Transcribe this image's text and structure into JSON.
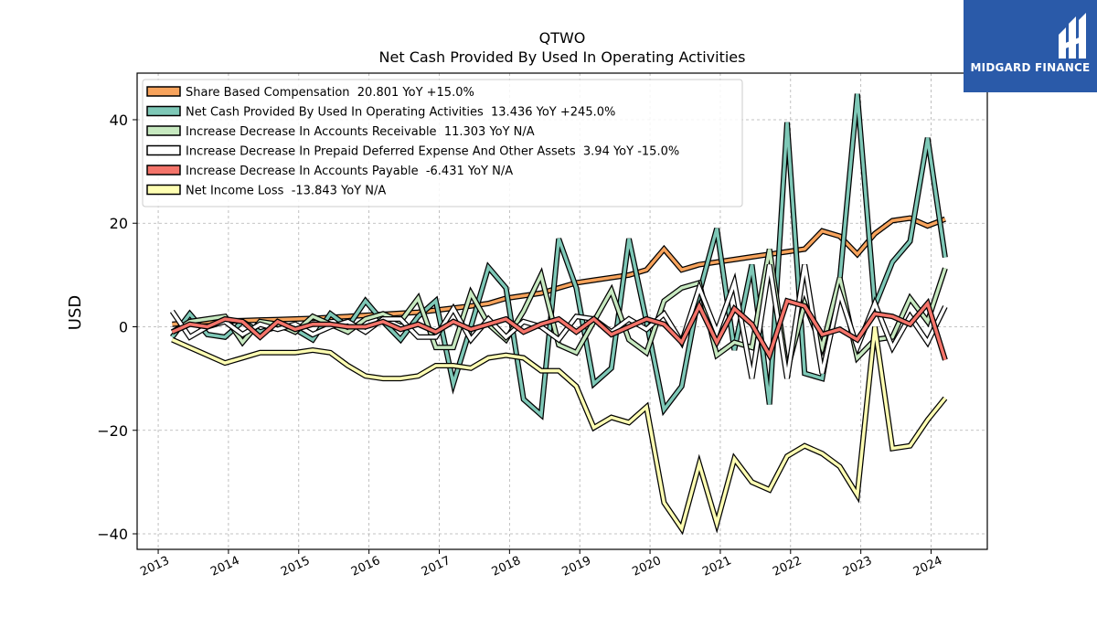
{
  "brand": {
    "name": "MIDGARD FINANCE",
    "background": "#2a5aa9"
  },
  "chart_data": {
    "type": "line",
    "title": "QTWO",
    "subtitle": "Net Cash Provided By Used In Operating Activities",
    "xlabel": "",
    "ylabel": "USD",
    "xlim": [
      2012.7,
      2024.8
    ],
    "ylim": [
      -43,
      49
    ],
    "x_ticks": [
      2013,
      2014,
      2015,
      2016,
      2017,
      2018,
      2019,
      2020,
      2021,
      2022,
      2023,
      2024
    ],
    "y_ticks": [
      -40,
      -20,
      0,
      20,
      40
    ],
    "y_tick_labels": [
      "−40",
      "−20",
      "0",
      "20",
      "40"
    ],
    "grid": true,
    "legend_position": "top-left",
    "x": [
      2013.2,
      2013.45,
      2013.7,
      2013.95,
      2014.2,
      2014.45,
      2014.7,
      2014.95,
      2015.2,
      2015.45,
      2015.7,
      2015.95,
      2016.2,
      2016.45,
      2016.7,
      2016.95,
      2017.2,
      2017.45,
      2017.7,
      2017.95,
      2018.2,
      2018.45,
      2018.7,
      2018.95,
      2019.2,
      2019.45,
      2019.7,
      2019.95,
      2020.2,
      2020.45,
      2020.7,
      2020.95,
      2021.2,
      2021.45,
      2021.7,
      2021.95,
      2022.2,
      2022.45,
      2022.7,
      2022.95,
      2023.2,
      2023.45,
      2023.7,
      2023.95,
      2024.2
    ],
    "series": [
      {
        "name": "Share Based Compensation  20.801 YoY +15.0%",
        "color": "#f7a35c",
        "values": [
          0.5,
          0.8,
          1.0,
          1.1,
          1.2,
          1.3,
          1.4,
          1.5,
          1.6,
          1.8,
          2.0,
          2.2,
          2.4,
          2.6,
          2.8,
          3.2,
          3.6,
          4.0,
          4.5,
          5.5,
          6.0,
          6.5,
          7.5,
          8.5,
          9.0,
          9.5,
          10.0,
          11.0,
          15.0,
          11.0,
          12.0,
          12.5,
          13.0,
          13.5,
          14.0,
          14.5,
          15.0,
          18.5,
          17.5,
          14.0,
          18.0,
          20.5,
          21.0,
          19.5,
          20.8
        ]
      },
      {
        "name": "Net Cash Provided By Used In Operating Activities  13.436 YoY +245.0%",
        "color": "#7ec8b7",
        "values": [
          -2.0,
          2.5,
          -1.5,
          -2.0,
          1.0,
          -1.0,
          0.0,
          -0.5,
          -2.5,
          2.5,
          0.0,
          5.0,
          1.0,
          -2.5,
          2.0,
          5.0,
          -11.0,
          0.0,
          11.5,
          7.5,
          -14.0,
          -17.0,
          17.0,
          7.5,
          -11.0,
          -8.0,
          17.0,
          1.0,
          -16.0,
          -11.5,
          6.5,
          19.0,
          -4.5,
          12.0,
          -15.0,
          39.5,
          -9.0,
          -10.0,
          9.0,
          45.0,
          4.0,
          12.5,
          16.5,
          36.5,
          13.4
        ]
      },
      {
        "name": "Increase Decrease In Accounts Receivable  11.303 YoY N/A",
        "color": "#c7e9c0",
        "values": [
          -1.0,
          1.0,
          1.5,
          2.0,
          -3.0,
          1.0,
          0.5,
          -1.0,
          2.0,
          0.5,
          -1.0,
          1.5,
          2.5,
          1.0,
          5.5,
          -4.0,
          -4.0,
          6.5,
          0.5,
          -2.5,
          3.0,
          10.0,
          -3.5,
          -5.0,
          1.0,
          7.0,
          -2.5,
          -5.0,
          5.0,
          7.5,
          8.5,
          -5.5,
          -3.0,
          -4.0,
          15.0,
          -8.5,
          4.5,
          -4.0,
          9.5,
          -6.0,
          -2.5,
          -2.0,
          5.5,
          1.0,
          11.3
        ]
      },
      {
        "name": "Increase Decrease In Prepaid Deferred Expense And Other Assets  3.94 YoY -15.0%",
        "color": "#ffffff",
        "values": [
          3.0,
          -2.0,
          0.0,
          1.0,
          -1.5,
          0.5,
          -0.5,
          0.5,
          -1.5,
          0.0,
          1.0,
          -1.0,
          1.5,
          1.5,
          -2.0,
          -2.0,
          3.5,
          -2.5,
          1.5,
          -2.0,
          1.0,
          0.0,
          -2.5,
          2.0,
          1.5,
          -1.0,
          1.5,
          -0.5,
          2.5,
          -3.0,
          7.5,
          -1.0,
          8.5,
          -10.0,
          12.0,
          -10.0,
          12.0,
          -9.0,
          6.5,
          -4.0,
          4.5,
          -4.0,
          2.0,
          -3.0,
          3.9
        ]
      },
      {
        "name": "Increase Decrease In Accounts Payable  -6.431 YoY N/A",
        "color": "#f4746a",
        "values": [
          -1.0,
          0.5,
          0.0,
          1.5,
          1.0,
          -2.0,
          1.0,
          -0.5,
          0.5,
          0.5,
          0.0,
          0.0,
          1.0,
          -0.5,
          0.5,
          -1.0,
          1.0,
          -0.5,
          0.5,
          1.5,
          -1.0,
          0.5,
          1.5,
          -1.0,
          1.5,
          -1.5,
          0.0,
          1.5,
          0.5,
          -3.0,
          4.0,
          -3.0,
          3.5,
          0.5,
          -5.5,
          5.0,
          4.0,
          -1.5,
          -0.5,
          -2.5,
          2.5,
          2.0,
          0.5,
          4.5,
          -6.4
        ]
      },
      {
        "name": "Net Income Loss  -13.843 YoY N/A",
        "color": "#ffffb3",
        "values": [
          -2.5,
          -4.0,
          -5.5,
          -7.0,
          -6.0,
          -5.0,
          -5.0,
          -5.0,
          -4.5,
          -5.0,
          -7.5,
          -9.5,
          -10.0,
          -10.0,
          -9.5,
          -7.5,
          -7.5,
          -8.0,
          -6.0,
          -5.5,
          -6.0,
          -8.5,
          -8.5,
          -11.5,
          -19.5,
          -17.5,
          -18.5,
          -15.5,
          -34.0,
          -39.0,
          -26.5,
          -38.0,
          -25.5,
          -30.0,
          -31.5,
          -25.0,
          -23.0,
          -24.5,
          -27.0,
          -32.5,
          0.0,
          -23.5,
          -23.0,
          -18.0,
          -13.8
        ]
      }
    ]
  }
}
